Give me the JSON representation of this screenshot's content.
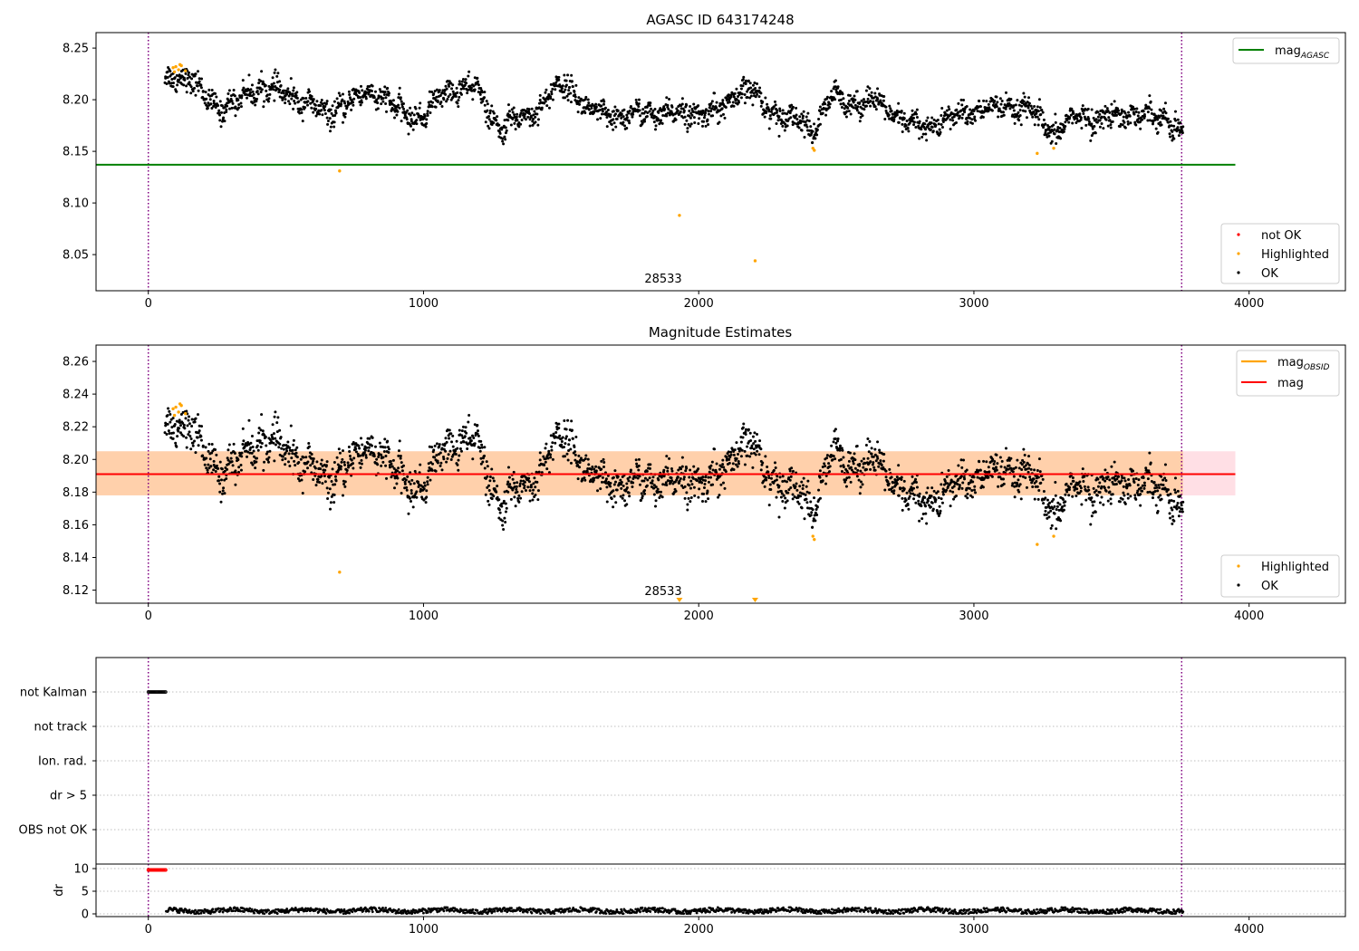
{
  "panel1": {
    "title": "AGASC ID 643174248",
    "obsid_label": "28533",
    "legend_upper": {
      "mag_agasc_base": "mag",
      "mag_agasc_sub": "AGASC"
    },
    "legend_lower": [
      {
        "label": "not OK",
        "color": "#ff0000"
      },
      {
        "label": "Highlighted",
        "color": "#ffa500"
      },
      {
        "label": "OK",
        "color": "#000000"
      }
    ]
  },
  "panel2": {
    "title": "Magnitude Estimates",
    "obsid_label": "28533",
    "legend_upper": [
      {
        "base": "mag",
        "sub": "OBSID",
        "color": "#ffa500"
      },
      {
        "base": "mag",
        "sub": "",
        "color": "#ff0000"
      }
    ],
    "legend_lower": [
      {
        "label": "Highlighted",
        "color": "#ffa500"
      },
      {
        "label": "OK",
        "color": "#000000"
      }
    ]
  },
  "panel3": {
    "flags": [
      "not Kalman",
      "not track",
      "Ion. rad.",
      "dr > 5",
      "OBS not OK"
    ]
  },
  "panel4": {
    "ylabel": "dr"
  },
  "chart_data": [
    {
      "type": "scatter",
      "title": "AGASC ID 643174248",
      "xlim": [
        -190,
        4350
      ],
      "ylim": [
        8.015,
        8.265
      ],
      "xticks": [
        0,
        1000,
        2000,
        3000,
        4000
      ],
      "yticks": [
        8.05,
        8.1,
        8.15,
        8.2,
        8.25
      ],
      "ytick_labels": [
        "8.05",
        "8.10",
        "8.15",
        "8.20",
        "8.25"
      ],
      "vlines": [
        0,
        3755
      ],
      "mag_agasc": 8.137,
      "mag_agasc_xrange": [
        -190,
        3950
      ],
      "series": [
        {
          "name": "OK",
          "x_range": [
            60,
            3760
          ],
          "trend": [
            [
              60,
              8.219
            ],
            [
              110,
              8.225
            ],
            [
              150,
              8.219
            ],
            [
              200,
              8.205
            ],
            [
              260,
              8.192
            ],
            [
              320,
              8.197
            ],
            [
              370,
              8.209
            ],
            [
              420,
              8.212
            ],
            [
              480,
              8.206
            ],
            [
              540,
              8.202
            ],
            [
              590,
              8.195
            ],
            [
              640,
              8.185
            ],
            [
              690,
              8.192
            ],
            [
              740,
              8.198
            ],
            [
              800,
              8.208
            ],
            [
              860,
              8.202
            ],
            [
              900,
              8.19
            ],
            [
              960,
              8.183
            ],
            [
              1010,
              8.187
            ],
            [
              1070,
              8.205
            ],
            [
              1130,
              8.212
            ],
            [
              1200,
              8.21
            ],
            [
              1240,
              8.185
            ],
            [
              1280,
              8.172
            ],
            [
              1330,
              8.18
            ],
            [
              1380,
              8.185
            ],
            [
              1430,
              8.196
            ],
            [
              1470,
              8.208
            ],
            [
              1520,
              8.215
            ],
            [
              1560,
              8.205
            ],
            [
              1600,
              8.188
            ],
            [
              1680,
              8.184
            ],
            [
              1750,
              8.184
            ],
            [
              1800,
              8.188
            ],
            [
              1880,
              8.185
            ],
            [
              1950,
              8.188
            ],
            [
              2020,
              8.186
            ],
            [
              2080,
              8.19
            ],
            [
              2130,
              8.204
            ],
            [
              2190,
              8.21
            ],
            [
              2230,
              8.196
            ],
            [
              2300,
              8.185
            ],
            [
              2370,
              8.18
            ],
            [
              2410,
              8.17
            ],
            [
              2440,
              8.18
            ],
            [
              2480,
              8.202
            ],
            [
              2560,
              8.198
            ],
            [
              2640,
              8.198
            ],
            [
              2700,
              8.188
            ],
            [
              2760,
              8.176
            ],
            [
              2820,
              8.174
            ],
            [
              2900,
              8.18
            ],
            [
              2980,
              8.188
            ],
            [
              3060,
              8.192
            ],
            [
              3140,
              8.192
            ],
            [
              3200,
              8.19
            ],
            [
              3240,
              8.18
            ],
            [
              3290,
              8.166
            ],
            [
              3340,
              8.18
            ],
            [
              3400,
              8.183
            ],
            [
              3460,
              8.182
            ],
            [
              3520,
              8.184
            ],
            [
              3580,
              8.188
            ],
            [
              3640,
              8.184
            ],
            [
              3700,
              8.182
            ],
            [
              3740,
              8.174
            ],
            [
              3760,
              8.166
            ]
          ],
          "scatter_sigma": 0.0055,
          "color": "#000000"
        },
        {
          "name": "Highlighted",
          "points": [
            [
              90,
              8.231
            ],
            [
              100,
              8.232
            ],
            [
              110,
              8.229
            ],
            [
              120,
              8.233
            ],
            [
              135,
              8.228
            ],
            [
              95,
              8.227
            ],
            [
              115,
              8.234
            ],
            [
              695,
              8.131
            ],
            [
              1930,
              8.088
            ],
            [
              2205,
              8.044
            ],
            [
              2415,
              8.153
            ],
            [
              2420,
              8.151
            ],
            [
              3230,
              8.148
            ],
            [
              3290,
              8.153
            ]
          ],
          "color": "#ffa500"
        }
      ]
    },
    {
      "type": "scatter",
      "title": "Magnitude Estimates",
      "xlim": [
        -190,
        4350
      ],
      "ylim": [
        8.112,
        8.27
      ],
      "xticks": [
        0,
        1000,
        2000,
        3000,
        4000
      ],
      "yticks": [
        8.12,
        8.14,
        8.16,
        8.18,
        8.2,
        8.22,
        8.24,
        8.26
      ],
      "ytick_labels": [
        "8.12",
        "8.14",
        "8.16",
        "8.18",
        "8.20",
        "8.22",
        "8.24",
        "8.26"
      ],
      "vlines": [
        0,
        3755
      ],
      "mag": 8.191,
      "mag_band": [
        8.178,
        8.205
      ],
      "mag_xrange": [
        -190,
        3950
      ],
      "mag_obsid_band": [
        8.178,
        8.205
      ],
      "mag_obsid_xrange": [
        -190,
        3760
      ],
      "series": [
        {
          "name": "OK",
          "same_as_panel": 0,
          "color": "#000000"
        },
        {
          "name": "Highlighted",
          "points": [
            [
              90,
              8.231
            ],
            [
              100,
              8.232
            ],
            [
              110,
              8.229
            ],
            [
              120,
              8.233
            ],
            [
              135,
              8.228
            ],
            [
              95,
              8.227
            ],
            [
              115,
              8.234
            ],
            [
              695,
              8.131
            ],
            [
              2415,
              8.153
            ],
            [
              2420,
              8.151
            ],
            [
              3230,
              8.148
            ],
            [
              3290,
              8.153
            ]
          ],
          "off_axis_markers": [
            1930,
            2205
          ],
          "color": "#ffa500"
        }
      ]
    },
    {
      "type": "scatter",
      "xlim": [
        -190,
        4350
      ],
      "categories": [
        "not Kalman",
        "not track",
        "Ion. rad.",
        "dr > 5",
        "OBS not OK"
      ],
      "vlines": [
        0,
        3755
      ],
      "flagged": [
        {
          "category": "not Kalman",
          "x_range": [
            0,
            65
          ]
        }
      ]
    },
    {
      "type": "scatter",
      "xlim": [
        -190,
        4350
      ],
      "ylim": [
        -0.6,
        11
      ],
      "xticks": [
        0,
        1000,
        2000,
        3000,
        4000
      ],
      "yticks": [
        0,
        5,
        10
      ],
      "ylabel": "dr",
      "vlines": [
        0,
        3755
      ],
      "series": [
        {
          "name": "not OK",
          "x_range": [
            0,
            65
          ],
          "value": 9.7,
          "color": "#ff0000"
        },
        {
          "name": "OK",
          "x_range": [
            65,
            3760
          ],
          "mean": 0.7,
          "spread": 0.5,
          "color": "#000000"
        }
      ]
    }
  ]
}
